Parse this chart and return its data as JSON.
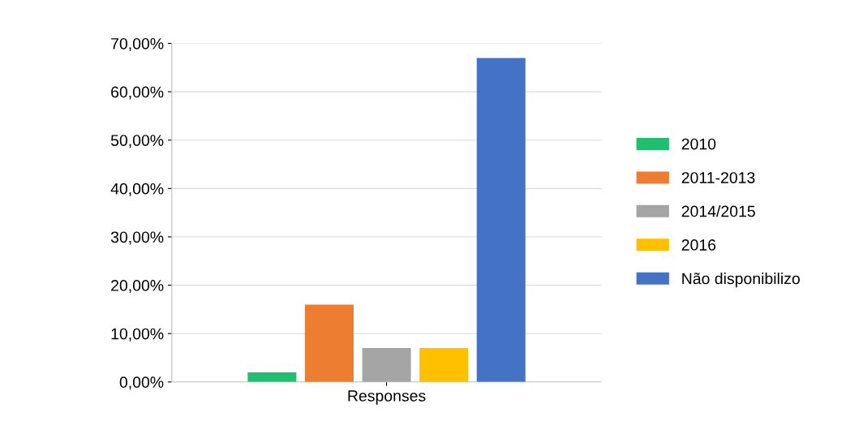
{
  "chart_data": {
    "type": "bar",
    "categories": [
      "Responses"
    ],
    "series": [
      {
        "name": "2010",
        "color": "#1fbf6f",
        "values": [
          0.02
        ]
      },
      {
        "name": "2011-2013",
        "color": "#ed7d31",
        "values": [
          0.16
        ]
      },
      {
        "name": "2014/2015",
        "color": "#a5a5a5",
        "values": [
          0.07
        ]
      },
      {
        "name": "2016",
        "color": "#ffc000",
        "values": [
          0.07
        ]
      },
      {
        "name": "Não disponibilizo",
        "color": "#4472c4",
        "values": [
          0.67
        ]
      }
    ],
    "ylim": [
      0,
      0.7
    ],
    "yticks": [
      {
        "value": 0,
        "label": "0,00%"
      },
      {
        "value": 0.1,
        "label": "10,00%"
      },
      {
        "value": 0.2,
        "label": "20,00%"
      },
      {
        "value": 0.3,
        "label": "30,00%"
      },
      {
        "value": 0.4,
        "label": "40,00%"
      },
      {
        "value": 0.5,
        "label": "50,00%"
      },
      {
        "value": 0.6,
        "label": "60,00%"
      },
      {
        "value": 0.7,
        "label": "70,00%"
      }
    ],
    "grid": "y",
    "legend": "right"
  }
}
